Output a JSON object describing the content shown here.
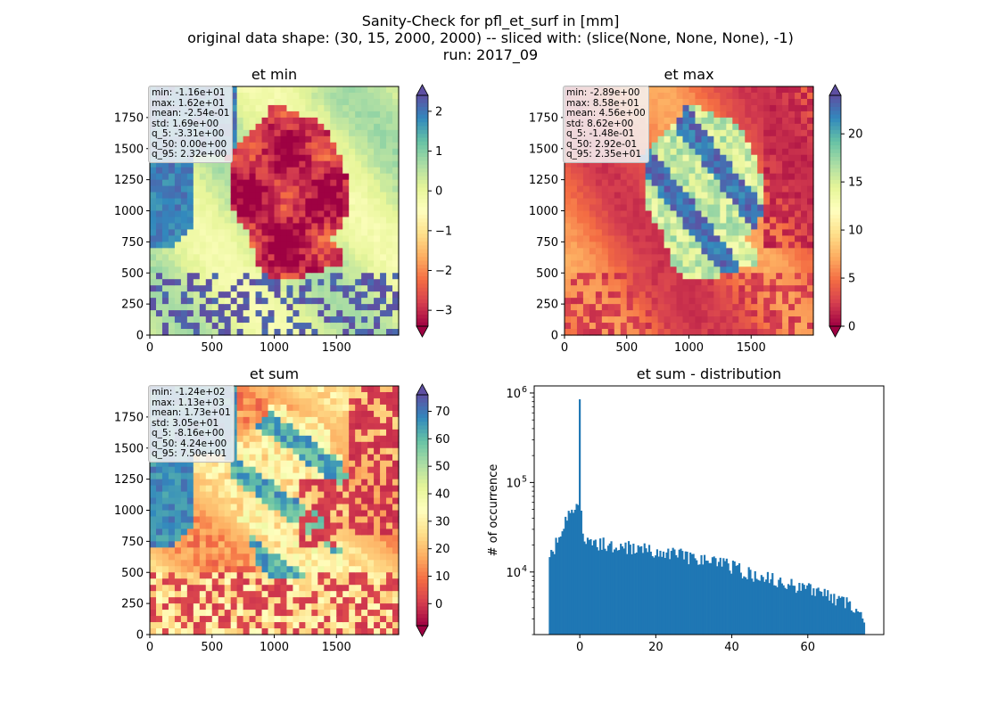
{
  "suptitle": [
    "Sanity-Check for pfl_et_surf in [mm]",
    "original data shape: (30, 15, 2000, 2000) -- sliced with: (slice(None, None, None), -1)",
    "run: 2017_09"
  ],
  "chart_data": [
    {
      "type": "heatmap",
      "title": "et min",
      "xticks": [
        "0",
        "500",
        "1000",
        "1500"
      ],
      "yticks": [
        "0",
        "250",
        "500",
        "750",
        "1000",
        "1250",
        "1500",
        "1750"
      ],
      "xlim": [
        0,
        2000
      ],
      "ylim": [
        0,
        2000
      ],
      "colorbar": {
        "ticks": [
          "2",
          "1",
          "0",
          "−1",
          "−2",
          "−3"
        ],
        "values": [
          2,
          1,
          0,
          -1,
          -2,
          -3
        ],
        "vmin": -3.4,
        "vmax": 2.4,
        "colormap": "Spectral",
        "extend": "both"
      },
      "stats": [
        "min: -1.16e+01",
        "max: 1.62e+01",
        "mean: -2.54e-01",
        "std: 1.69e+00",
        "q_5: -3.31e+00",
        "q_50: 0.00e+00",
        "q_95: 2.32e+00"
      ]
    },
    {
      "type": "heatmap",
      "title": "et max",
      "xticks": [
        "0",
        "500",
        "1000",
        "1500"
      ],
      "yticks": [
        "0",
        "250",
        "500",
        "750",
        "1000",
        "1250",
        "1500",
        "1750"
      ],
      "xlim": [
        0,
        2000
      ],
      "ylim": [
        0,
        2000
      ],
      "colorbar": {
        "ticks": [
          "20",
          "15",
          "10",
          "5",
          "0"
        ],
        "values": [
          20,
          15,
          10,
          5,
          0
        ],
        "vmin": 0,
        "vmax": 24,
        "colormap": "Spectral",
        "extend": "both"
      },
      "stats": [
        "min: -2.89e+00",
        "max: 8.58e+01",
        "mean: 4.56e+00",
        "std: 8.62e+00",
        "q_5: -1.48e-01",
        "q_50: 2.92e-01",
        "q_95: 2.35e+01"
      ]
    },
    {
      "type": "heatmap",
      "title": "et sum",
      "xticks": [
        "0",
        "500",
        "1000",
        "1500"
      ],
      "yticks": [
        "0",
        "250",
        "500",
        "750",
        "1000",
        "1250",
        "1500",
        "1750"
      ],
      "xlim": [
        0,
        2000
      ],
      "ylim": [
        0,
        2000
      ],
      "colorbar": {
        "ticks": [
          "70",
          "60",
          "50",
          "40",
          "30",
          "20",
          "10",
          "0"
        ],
        "values": [
          70,
          60,
          50,
          40,
          30,
          20,
          10,
          0
        ],
        "vmin": -8,
        "vmax": 76,
        "colormap": "Spectral",
        "extend": "both"
      },
      "stats": [
        "min: -1.24e+02",
        "max: 1.13e+03",
        "mean: 1.73e+01",
        "std: 3.05e+01",
        "q_5: -8.16e+00",
        "q_50: 4.24e+00",
        "q_95: 7.50e+01"
      ]
    },
    {
      "type": "bar",
      "title": "et sum - distribution",
      "ylabel": "# of occurrence",
      "yscale": "log",
      "xlim": [
        -12,
        80
      ],
      "ylim": [
        2000,
        1200000
      ],
      "xticks": [
        "0",
        "20",
        "40",
        "60"
      ],
      "xtick_values": [
        0,
        20,
        40,
        60
      ],
      "yticks": [
        "10",
        "10",
        "10"
      ],
      "ytick_exponents": [
        "4",
        "5",
        "6"
      ],
      "ytick_values": [
        10000,
        100000,
        1000000
      ],
      "bar_color": "#1f77b4",
      "x_range": [
        -8.16,
        75.0
      ],
      "bins": 200,
      "profile": [
        [
          -8.16,
          12000
        ],
        [
          -7.5,
          16000
        ],
        [
          -6.5,
          20000
        ],
        [
          -5,
          28000
        ],
        [
          -3.5,
          40000
        ],
        [
          -2,
          50000
        ],
        [
          -1,
          58000
        ],
        [
          -0.2,
          65000
        ],
        [
          0,
          850000
        ],
        [
          0.3,
          45000
        ],
        [
          1,
          22000
        ],
        [
          3,
          20000
        ],
        [
          5,
          21000
        ],
        [
          8,
          20500
        ],
        [
          12,
          19000
        ],
        [
          16,
          18000
        ],
        [
          20,
          17500
        ],
        [
          25,
          16000
        ],
        [
          30,
          14500
        ],
        [
          35,
          13500
        ],
        [
          40,
          11500
        ],
        [
          45,
          9500
        ],
        [
          50,
          8500
        ],
        [
          55,
          7500
        ],
        [
          60,
          6500
        ],
        [
          65,
          5500
        ],
        [
          70,
          4500
        ],
        [
          75,
          3000
        ]
      ]
    }
  ]
}
